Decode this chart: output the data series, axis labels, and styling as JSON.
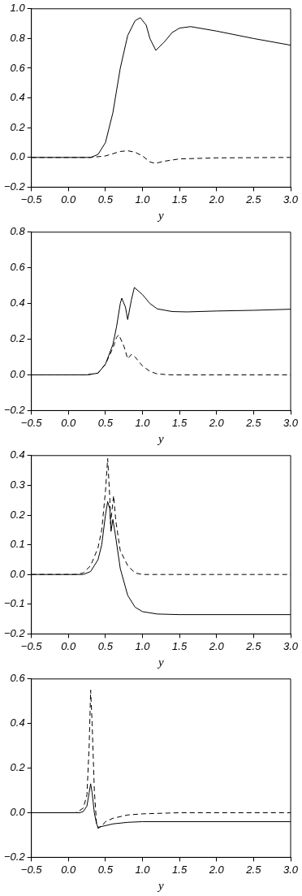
{
  "chart_data": [
    {
      "type": "line",
      "xlabel": "y",
      "xlim": [
        -0.5,
        3.0
      ],
      "xticks": [
        {
          "value": -0.5,
          "label": "−0.5"
        },
        {
          "value": 0,
          "label": "0.0"
        },
        {
          "value": 0.5,
          "label": "0.5"
        },
        {
          "value": 1,
          "label": "1.0"
        },
        {
          "value": 1.5,
          "label": "1.5"
        },
        {
          "value": 2,
          "label": "2.0"
        },
        {
          "value": 2.5,
          "label": "2.5"
        },
        {
          "value": 3,
          "label": "3.0"
        }
      ],
      "ylim": [
        -0.2,
        1.0
      ],
      "yticks": [
        {
          "value": -0.2,
          "label": "−0.2"
        },
        {
          "value": 0,
          "label": "0.0"
        },
        {
          "value": 0.2,
          "label": "0.2"
        },
        {
          "value": 0.4,
          "label": "0.4"
        },
        {
          "value": 0.6,
          "label": "0.6"
        },
        {
          "value": 0.8,
          "label": "0.8"
        },
        {
          "value": 1,
          "label": "1.0"
        }
      ],
      "grid": false,
      "legend": false,
      "marker": "none",
      "series": [
        {
          "color": "#000000",
          "line_style": "solid",
          "x": [
            -0.5,
            0.3,
            0.4,
            0.5,
            0.6,
            0.7,
            0.8,
            0.9,
            0.97,
            1.05,
            1.1,
            1.18,
            1.3,
            1.4,
            1.5,
            1.65,
            2.0,
            2.5,
            3.0
          ],
          "values": [
            0,
            0,
            0.02,
            0.1,
            0.3,
            0.6,
            0.82,
            0.92,
            0.94,
            0.89,
            0.8,
            0.72,
            0.78,
            0.84,
            0.87,
            0.88,
            0.85,
            0.8,
            0.755
          ]
        },
        {
          "color": "#000000",
          "line_style": "dashed",
          "x": [
            -0.5,
            0.3,
            0.5,
            0.6,
            0.7,
            0.8,
            0.9,
            1.0,
            1.1,
            1.17,
            1.3,
            1.5,
            2.0,
            3.0
          ],
          "values": [
            0,
            0,
            0.01,
            0.025,
            0.04,
            0.045,
            0.035,
            0.01,
            -0.03,
            -0.04,
            -0.025,
            -0.01,
            -0.003,
            0
          ]
        }
      ]
    },
    {
      "type": "line",
      "xlabel": "y",
      "xlim": [
        -0.5,
        3.0
      ],
      "xticks": [
        {
          "value": -0.5,
          "label": "−0.5"
        },
        {
          "value": 0,
          "label": "0.0"
        },
        {
          "value": 0.5,
          "label": "0.5"
        },
        {
          "value": 1,
          "label": "1.0"
        },
        {
          "value": 1.5,
          "label": "1.5"
        },
        {
          "value": 2,
          "label": "2.0"
        },
        {
          "value": 2.5,
          "label": "2.5"
        },
        {
          "value": 3,
          "label": "3.0"
        }
      ],
      "ylim": [
        -0.2,
        0.8
      ],
      "yticks": [
        {
          "value": -0.2,
          "label": "−0.2"
        },
        {
          "value": 0,
          "label": "0.0"
        },
        {
          "value": 0.2,
          "label": "0.2"
        },
        {
          "value": 0.4,
          "label": "0.4"
        },
        {
          "value": 0.6,
          "label": "0.6"
        },
        {
          "value": 0.8,
          "label": "0.8"
        }
      ],
      "grid": false,
      "legend": false,
      "marker": "none",
      "series": [
        {
          "color": "#000000",
          "line_style": "solid",
          "x": [
            -0.5,
            0.25,
            0.4,
            0.5,
            0.6,
            0.65,
            0.7,
            0.72,
            0.77,
            0.8,
            0.85,
            0.89,
            1.0,
            1.1,
            1.2,
            1.4,
            1.6,
            2.0,
            2.5,
            3.0
          ],
          "values": [
            0,
            0,
            0.01,
            0.06,
            0.17,
            0.27,
            0.4,
            0.43,
            0.38,
            0.31,
            0.42,
            0.49,
            0.45,
            0.4,
            0.37,
            0.355,
            0.353,
            0.358,
            0.362,
            0.368
          ]
        },
        {
          "color": "#000000",
          "line_style": "dashed",
          "x": [
            -0.5,
            0.25,
            0.4,
            0.5,
            0.6,
            0.65,
            0.68,
            0.75,
            0.8,
            0.85,
            0.9,
            1.0,
            1.1,
            1.2,
            1.4,
            3.0
          ],
          "values": [
            0,
            0,
            0.01,
            0.06,
            0.15,
            0.21,
            0.225,
            0.16,
            0.09,
            0.115,
            0.1,
            0.05,
            0.02,
            0.005,
            0,
            0
          ]
        }
      ]
    },
    {
      "type": "line",
      "xlabel": "y",
      "xlim": [
        -0.5,
        3.0
      ],
      "xticks": [
        {
          "value": -0.5,
          "label": "−0.5"
        },
        {
          "value": 0,
          "label": "0.0"
        },
        {
          "value": 0.5,
          "label": "0.5"
        },
        {
          "value": 1,
          "label": "1.0"
        },
        {
          "value": 1.5,
          "label": "1.5"
        },
        {
          "value": 2,
          "label": "2.0"
        },
        {
          "value": 2.5,
          "label": "2.5"
        },
        {
          "value": 3,
          "label": "3.0"
        }
      ],
      "ylim": [
        -0.2,
        0.4
      ],
      "yticks": [
        {
          "value": -0.2,
          "label": "−0.2"
        },
        {
          "value": -0.1,
          "label": "−0.1"
        },
        {
          "value": 0,
          "label": "0.0"
        },
        {
          "value": 0.1,
          "label": "0.1"
        },
        {
          "value": 0.2,
          "label": "0.2"
        },
        {
          "value": 0.3,
          "label": "0.3"
        },
        {
          "value": 0.4,
          "label": "0.4"
        }
      ],
      "grid": false,
      "legend": false,
      "marker": "none",
      "series": [
        {
          "color": "#000000",
          "line_style": "solid",
          "x": [
            -0.5,
            0.2,
            0.3,
            0.4,
            0.45,
            0.5,
            0.53,
            0.56,
            0.575,
            0.6,
            0.63,
            0.7,
            0.8,
            0.9,
            1.0,
            1.2,
            1.5,
            3.0
          ],
          "values": [
            0,
            0,
            0.01,
            0.05,
            0.1,
            0.2,
            0.245,
            0.22,
            0.145,
            0.185,
            0.14,
            0.02,
            -0.07,
            -0.11,
            -0.125,
            -0.133,
            -0.135,
            -0.135
          ]
        },
        {
          "color": "#000000",
          "line_style": "dashed",
          "x": [
            -0.5,
            0.1,
            0.2,
            0.3,
            0.4,
            0.45,
            0.5,
            0.53,
            0.56,
            0.57,
            0.59,
            0.61,
            0.64,
            0.7,
            0.8,
            0.9,
            1.0,
            3.0
          ],
          "values": [
            0,
            0,
            0.005,
            0.03,
            0.09,
            0.15,
            0.28,
            0.39,
            0.25,
            0.17,
            0.22,
            0.265,
            0.18,
            0.08,
            0.03,
            0.005,
            0,
            0
          ]
        }
      ]
    },
    {
      "type": "line",
      "xlabel": "y",
      "xlim": [
        -0.5,
        3.0
      ],
      "xticks": [
        {
          "value": -0.5,
          "label": "−0.5"
        },
        {
          "value": 0,
          "label": "0.0"
        },
        {
          "value": 0.5,
          "label": "0.5"
        },
        {
          "value": 1,
          "label": "1.0"
        },
        {
          "value": 1.5,
          "label": "1.5"
        },
        {
          "value": 2,
          "label": "2.0"
        },
        {
          "value": 2.5,
          "label": "2.5"
        },
        {
          "value": 3,
          "label": "3.0"
        }
      ],
      "ylim": [
        -0.2,
        0.6
      ],
      "yticks": [
        {
          "value": -0.2,
          "label": "−0.2"
        },
        {
          "value": 0,
          "label": "0.0"
        },
        {
          "value": 0.2,
          "label": "0.2"
        },
        {
          "value": 0.4,
          "label": "0.4"
        },
        {
          "value": 0.6,
          "label": "0.6"
        }
      ],
      "grid": false,
      "legend": false,
      "marker": "none",
      "series": [
        {
          "color": "#000000",
          "line_style": "solid",
          "x": [
            -0.5,
            0.15,
            0.2,
            0.25,
            0.28,
            0.3,
            0.32,
            0.35,
            0.38,
            0.4,
            0.5,
            0.6,
            0.8,
            1.0,
            3.0
          ],
          "values": [
            0,
            0,
            0.005,
            0.03,
            0.09,
            0.13,
            0.09,
            0.0,
            -0.05,
            -0.065,
            -0.058,
            -0.05,
            -0.043,
            -0.04,
            -0.04
          ]
        },
        {
          "color": "#000000",
          "line_style": "dashed",
          "x": [
            -0.5,
            0.1,
            0.2,
            0.25,
            0.28,
            0.3,
            0.32,
            0.35,
            0.38,
            0.4,
            0.45,
            0.5,
            0.6,
            0.8,
            1.0,
            1.5,
            3.0
          ],
          "values": [
            0,
            0,
            0.02,
            0.08,
            0.3,
            0.55,
            0.4,
            0.1,
            -0.05,
            -0.07,
            -0.06,
            -0.04,
            -0.025,
            -0.01,
            -0.005,
            0,
            0
          ]
        }
      ]
    }
  ]
}
